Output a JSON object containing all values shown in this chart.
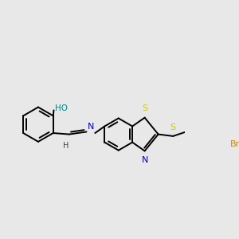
{
  "background_color": "#e8e8e8",
  "figsize": [
    3.0,
    3.0
  ],
  "dpi": 100,
  "bond_color": "#000000",
  "atom_colors": {
    "O": "#ff0000",
    "N": "#0000cc",
    "S": "#cccc00",
    "Br": "#cc8800",
    "H": "#444444"
  },
  "oh_color": "#008888",
  "lw": 1.4,
  "font_size": 7.5
}
